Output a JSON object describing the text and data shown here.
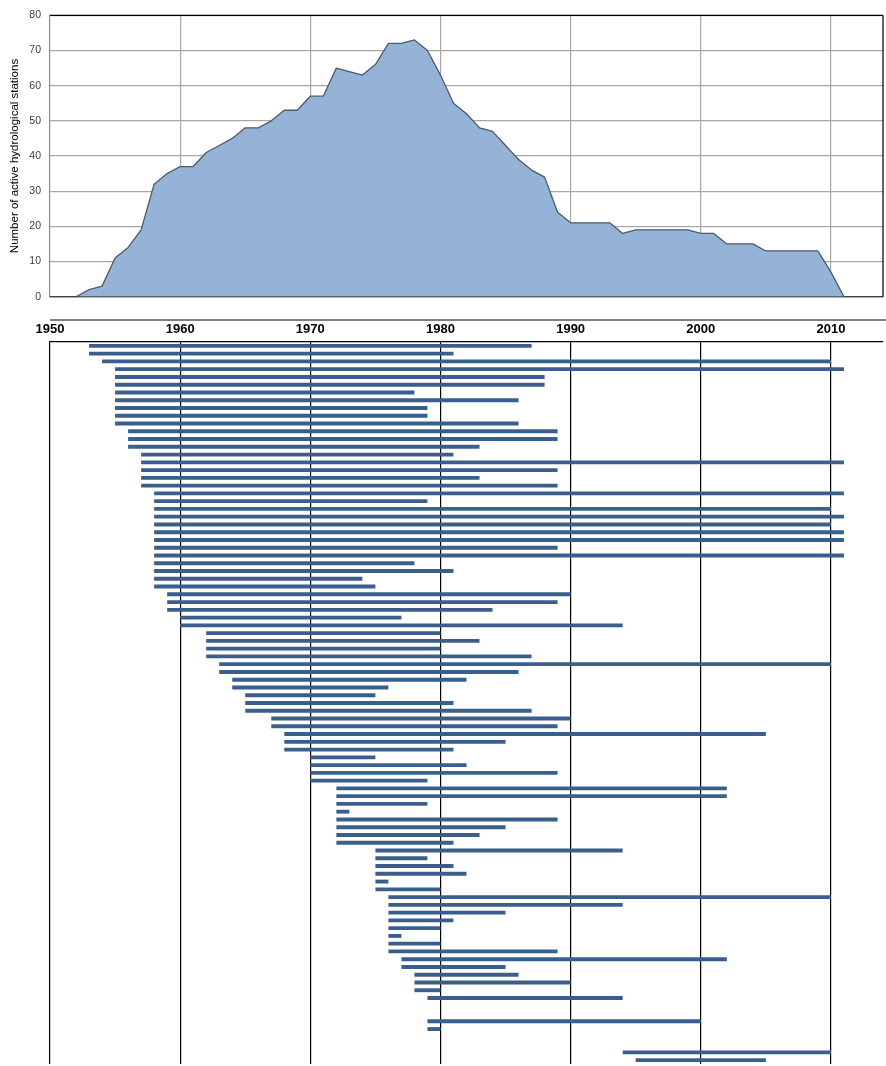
{
  "chart_data": [
    {
      "type": "area",
      "ylabel": "Number of active hydrological stations",
      "x": [
        1950,
        1951,
        1952,
        1953,
        1954,
        1955,
        1956,
        1957,
        1958,
        1959,
        1960,
        1961,
        1962,
        1963,
        1964,
        1965,
        1966,
        1967,
        1968,
        1969,
        1970,
        1971,
        1972,
        1973,
        1974,
        1975,
        1976,
        1977,
        1978,
        1979,
        1980,
        1981,
        1982,
        1983,
        1984,
        1985,
        1986,
        1987,
        1988,
        1989,
        1990,
        1991,
        1992,
        1993,
        1994,
        1995,
        1996,
        1997,
        1998,
        1999,
        2000,
        2001,
        2002,
        2003,
        2004,
        2005,
        2006,
        2007,
        2008,
        2009,
        2010,
        2011,
        2012,
        2013,
        2014
      ],
      "values": [
        0,
        0,
        0,
        2,
        3,
        11,
        14,
        19,
        32,
        35,
        37,
        37,
        41,
        43,
        45,
        48,
        48,
        50,
        53,
        53,
        57,
        57,
        65,
        64,
        63,
        66,
        72,
        72,
        73,
        70,
        63,
        55,
        52,
        48,
        47,
        43,
        39,
        36,
        34,
        24,
        21,
        21,
        21,
        21,
        18,
        19,
        19,
        19,
        19,
        19,
        18,
        18,
        15,
        15,
        15,
        13,
        13,
        13,
        13,
        13,
        7,
        0,
        0,
        0,
        0
      ],
      "color": "#95b3d7",
      "xlim": [
        1950,
        2014
      ],
      "xticks": [
        1960,
        1970,
        1980,
        1990,
        2000,
        2010
      ],
      "ylim": [
        0,
        80
      ],
      "yticks": [
        0,
        10,
        20,
        30,
        40,
        50,
        60,
        70,
        80
      ],
      "grid": true,
      "tick_labels": "y"
    },
    {
      "type": "bar",
      "orientation": "horizontal",
      "categories": [
        null,
        null,
        null,
        null,
        null,
        null,
        null,
        null,
        null,
        null,
        null,
        null,
        null,
        null,
        null,
        null,
        null,
        null,
        null,
        null,
        null,
        null,
        null,
        null,
        null,
        null,
        null,
        null,
        null,
        null,
        null,
        null,
        null,
        null,
        null,
        null,
        null,
        null,
        null,
        null,
        null,
        null,
        null,
        null,
        null,
        null,
        null,
        null,
        null,
        null,
        null,
        null,
        null,
        null,
        null,
        null,
        null,
        null,
        null,
        null,
        null,
        null,
        null,
        null,
        null,
        null,
        null,
        null,
        null,
        null,
        null,
        null,
        null,
        null,
        null,
        null,
        null,
        null,
        null,
        null,
        null,
        null,
        null,
        null,
        null,
        null,
        null,
        null,
        null,
        null,
        null,
        null,
        null
      ],
      "base": [
        1953,
        1953,
        1954,
        1955,
        1955,
        1955,
        1955,
        1955,
        1955,
        1955,
        1955,
        1956,
        1956,
        1956,
        1957,
        1957,
        1957,
        1957,
        1957,
        1958,
        1958,
        1958,
        1958,
        1958,
        1958,
        1958,
        1958,
        1958,
        1958,
        1958,
        1958,
        1958,
        1959,
        1959,
        1959,
        1960,
        1960,
        1962,
        1962,
        1962,
        1962,
        1963,
        1963,
        1964,
        1964,
        1965,
        1965,
        1965,
        1967,
        1967,
        1968,
        1968,
        1968,
        1970,
        1970,
        1970,
        1970,
        1972,
        1972,
        1972,
        1972,
        1972,
        1972,
        1972,
        1972,
        1975,
        1975,
        1975,
        1975,
        1975,
        1975,
        1976,
        1976,
        1976,
        1976,
        1976,
        1976,
        1976,
        1976,
        1977,
        1977,
        1978,
        1978,
        1978,
        1979,
        null,
        null,
        1979,
        1979,
        null,
        null,
        1994,
        1995
      ],
      "values": [
        34,
        28,
        56,
        56,
        33,
        33,
        23,
        31,
        24,
        24,
        31,
        33,
        33,
        27,
        24,
        54,
        32,
        26,
        32,
        53,
        21,
        52,
        53,
        52,
        53,
        53,
        31,
        53,
        20,
        23,
        16,
        17,
        31,
        30,
        25,
        17,
        34,
        18,
        21,
        18,
        25,
        47,
        23,
        18,
        12,
        10,
        16,
        22,
        23,
        22,
        37,
        17,
        13,
        5,
        12,
        19,
        9,
        30,
        30,
        7,
        1,
        17,
        13,
        11,
        9,
        19,
        4,
        6,
        7,
        1,
        5,
        34,
        18,
        9,
        5,
        4,
        1,
        4,
        13,
        25,
        8,
        8,
        12,
        2,
        15,
        null,
        null,
        21,
        1,
        null,
        null,
        16,
        10
      ],
      "color": "#3b5f8c",
      "xlim": [
        1950,
        2014
      ],
      "xticks": [
        1950,
        1960,
        1970,
        1980,
        1990,
        2000,
        2010
      ],
      "grid": "x"
    }
  ]
}
